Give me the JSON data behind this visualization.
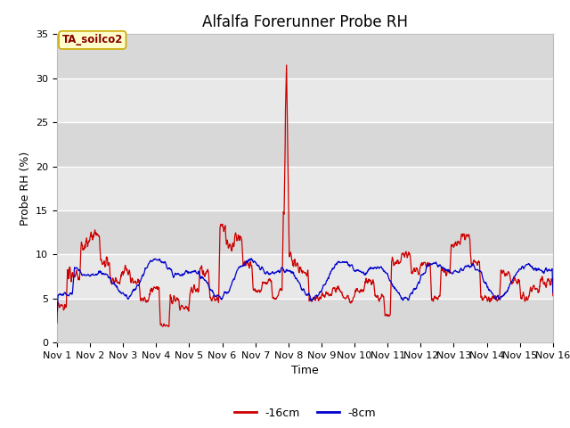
{
  "title": "Alfalfa Forerunner Probe RH",
  "xlabel": "Time",
  "ylabel": "Probe RH (%)",
  "ylim": [
    0,
    35
  ],
  "yticks": [
    0,
    5,
    10,
    15,
    20,
    25,
    30,
    35
  ],
  "xlim_days": [
    0,
    15
  ],
  "xtick_labels": [
    "Nov 1",
    "Nov 2",
    "Nov 3",
    "Nov 4",
    "Nov 5",
    "Nov 6",
    "Nov 7",
    "Nov 8",
    "Nov 9",
    "Nov 10",
    "Nov 11",
    "Nov 12",
    "Nov 13",
    "Nov 14",
    "Nov 15",
    "Nov 16"
  ],
  "line_16cm_color": "#cc0000",
  "line_8cm_color": "#0000cc",
  "legend_16cm": "-16cm",
  "legend_8cm": "-8cm",
  "annotation_text": "TA_soilco2",
  "annotation_bg": "#ffffcc",
  "annotation_border": "#ccaa00",
  "annotation_text_color": "#880000",
  "plot_bg": "#e8e8e8",
  "grid_color": "#ffffff",
  "band_color": "#d8d8d8",
  "title_fontsize": 12,
  "axis_fontsize": 9,
  "tick_fontsize": 8
}
